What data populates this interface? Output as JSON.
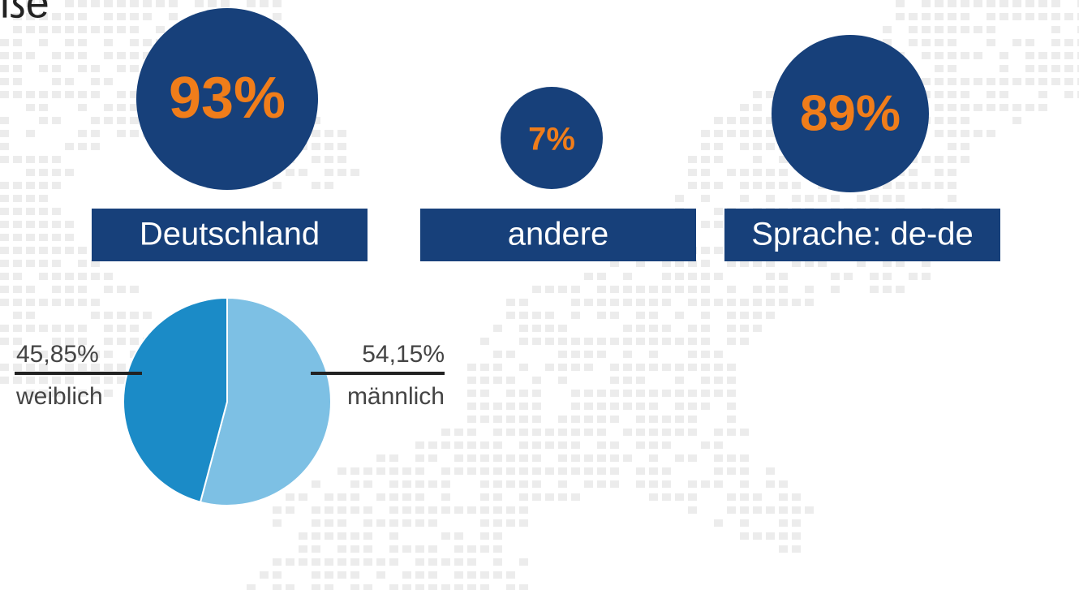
{
  "title": "ße",
  "stats": [
    {
      "value": "93%",
      "label": "Deutschland"
    },
    {
      "value": "7%",
      "label": "andere"
    },
    {
      "value": "89%",
      "label": "Sprache: de-de"
    }
  ],
  "chart_data": {
    "type": "pie",
    "categories": [
      "weiblich",
      "männlich"
    ],
    "values": [
      45.85,
      54.15
    ],
    "value_labels": [
      "45,85%",
      "54,15%"
    ],
    "colors": [
      "#1b8bc7",
      "#7dc0e4"
    ]
  }
}
